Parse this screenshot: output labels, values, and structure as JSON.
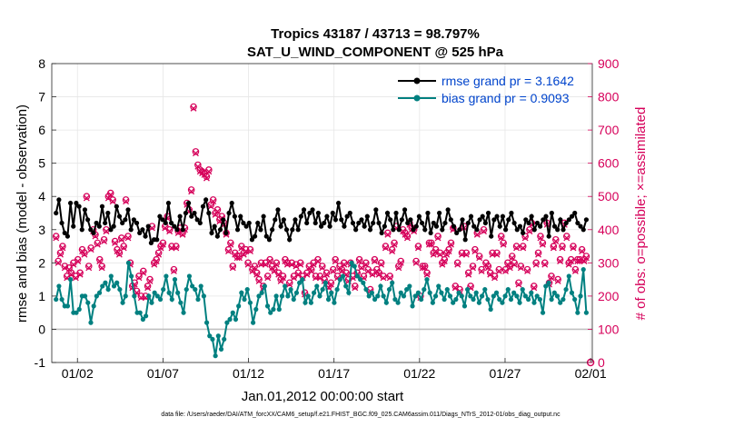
{
  "chart_data": {
    "type": "line",
    "title": "Tropics 43187 / 43713 = 98.797%",
    "subtitle": "SAT_U_WIND_COMPONENT @ 525 hPa",
    "xlabel": "Jan.01,2012 00:00:00 start",
    "ylabel": "rmse and bias (model - observation)",
    "ylabel_right": "# of obs: o=possible; ×=assimilated",
    "footnote": "data file: /Users/raeder/DAI/ATM_forcXX/CAM6_setup/f.e21.FHIST_BGC.f09_025.CAM6assim.011/Diags_NTrS_2012-01/obs_diag_output.nc",
    "x_unit": "days since Jan.01,2012 00:00:00",
    "xlim": [
      0,
      31.6
    ],
    "ylim": [
      -1,
      8
    ],
    "ylim_right": [
      0,
      900
    ],
    "x_ticks": [
      {
        "label": "01/02",
        "x": 1.5
      },
      {
        "label": "01/07",
        "x": 6.5
      },
      {
        "label": "01/12",
        "x": 11.5
      },
      {
        "label": "01/17",
        "x": 16.5
      },
      {
        "label": "01/22",
        "x": 21.5
      },
      {
        "label": "01/27",
        "x": 26.5
      },
      {
        "label": "02/01",
        "x": 31.5
      }
    ],
    "y_ticks": [
      "-1",
      "0",
      "1",
      "2",
      "3",
      "4",
      "5",
      "6",
      "7",
      "8"
    ],
    "y_ticks_right": [
      "0",
      "100",
      "200",
      "300",
      "400",
      "500",
      "600",
      "700",
      "800",
      "900"
    ],
    "zero_line": 0,
    "colors": {
      "rmse": "#000000",
      "bias": "#008080",
      "obs": "#d6005a",
      "grid": "#e6e6e6",
      "zero": "#c0c0c0",
      "legend_text": "#0044cc"
    },
    "series": [
      {
        "name": "rmse",
        "legend": "rmse grand pr = 3.1642",
        "color": "#000000",
        "values": [
          3.5,
          3.9,
          3.2,
          2.9,
          2.8,
          3.8,
          3.1,
          3.8,
          3.7,
          3.0,
          3.6,
          3.3,
          3.0,
          2.9,
          3.2,
          3.1,
          3.7,
          3.2,
          3.5,
          3.0,
          3.1,
          3.7,
          3.4,
          3.2,
          3.3,
          3.6,
          3.0,
          3.3,
          3.2,
          2.9,
          3.0,
          2.8,
          3.1,
          2.6,
          2.7,
          2.7,
          3.4,
          3.3,
          3.2,
          3.8,
          3.2,
          3.1,
          3.0,
          3.4,
          3.0,
          3.5,
          3.8,
          3.4,
          3.5,
          3.3,
          3.2,
          3.7,
          3.9,
          3.5,
          2.9,
          3.1,
          2.8,
          3.0,
          3.3,
          2.9,
          3.5,
          3.8,
          3.4,
          3.0,
          3.4,
          3.2,
          3.1,
          3.2,
          2.7,
          2.8,
          3.2,
          3.0,
          3.4,
          2.8,
          2.7,
          3.0,
          3.3,
          3.6,
          3.1,
          3.3,
          3.0,
          2.7,
          3.0,
          3.3,
          3.0,
          3.4,
          3.6,
          3.2,
          3.5,
          3.6,
          3.2,
          3.5,
          3.1,
          3.2,
          3.4,
          3.1,
          3.5,
          3.3,
          3.8,
          3.3,
          3.1,
          3.4,
          3.5,
          3.2,
          3.0,
          3.2,
          3.3,
          3.1,
          3.4,
          3.0,
          3.2,
          3.6,
          3.2,
          2.9,
          3.1,
          3.5,
          3.3,
          3.0,
          3.5,
          3.0,
          3.3,
          3.6,
          3.2,
          3.3,
          3.0,
          3.1,
          3.4,
          3.2,
          3.0,
          3.5,
          2.9,
          3.2,
          3.1,
          3.5,
          3.0,
          3.2,
          3.6,
          3.3,
          3.1,
          2.9,
          3.0,
          3.3,
          2.7,
          3.2,
          3.4,
          3.1,
          3.0,
          3.3,
          3.4,
          3.2,
          3.5,
          2.8,
          3.3,
          3.4,
          3.1,
          3.4,
          3.0,
          3.3,
          3.5,
          3.2,
          3.0,
          3.1,
          2.9,
          3.3,
          3.2,
          3.4,
          3.0,
          3.2,
          3.1,
          3.3,
          3.4,
          2.8,
          3.5,
          3.1,
          3.0,
          3.3,
          3.0,
          3.2,
          3.3,
          3.4,
          3.5,
          3.2,
          3.1,
          3.0,
          3.3
        ]
      },
      {
        "name": "bias",
        "legend": "bias grand pr = 0.9093",
        "color": "#008080",
        "values": [
          0.9,
          1.3,
          0.9,
          0.7,
          0.7,
          1.5,
          0.5,
          0.5,
          0.6,
          1.0,
          1.0,
          0.8,
          0.2,
          0.7,
          1.0,
          1.1,
          1.3,
          1.4,
          1.2,
          1.6,
          1.3,
          1.4,
          1.2,
          0.8,
          1.0,
          2.0,
          1.6,
          1.0,
          0.5,
          0.5,
          0.3,
          0.4,
          1.0,
          0.8,
          1.1,
          1.0,
          0.9,
          1.2,
          1.6,
          1.1,
          0.9,
          1.5,
          1.1,
          0.8,
          0.5,
          1.2,
          1.6,
          1.3,
          1.2,
          0.9,
          1.3,
          1.0,
          0.2,
          -0.2,
          -0.3,
          -0.8,
          -0.2,
          -0.6,
          -0.3,
          0.2,
          0.3,
          0.5,
          0.3,
          0.7,
          1.1,
          0.9,
          1.2,
          0.8,
          0.2,
          0.6,
          1.0,
          1.1,
          1.3,
          0.7,
          0.5,
          0.6,
          1.0,
          0.6,
          1.0,
          1.3,
          1.0,
          1.2,
          0.9,
          1.1,
          1.4,
          1.5,
          0.8,
          1.0,
          0.8,
          1.1,
          1.3,
          1.0,
          1.2,
          1.4,
          0.9,
          1.1,
          0.8,
          1.2,
          1.5,
          1.6,
          1.3,
          1.1,
          2.0,
          1.9,
          1.6,
          1.5,
          1.4,
          1.2,
          1.0,
          1.1,
          0.9,
          1.0,
          1.3,
          1.0,
          0.8,
          1.2,
          1.4,
          0.9,
          0.8,
          1.1,
          1.0,
          1.2,
          1.3,
          0.7,
          1.0,
          1.1,
          0.9,
          1.2,
          1.5,
          1.1,
          0.8,
          1.0,
          1.3,
          1.1,
          0.9,
          1.2,
          1.0,
          0.8,
          0.9,
          1.1,
          1.0,
          0.7,
          1.2,
          1.0,
          0.9,
          1.1,
          0.8,
          1.0,
          1.2,
          0.9,
          0.6,
          1.0,
          1.1,
          0.9,
          0.8,
          1.0,
          1.2,
          0.9,
          1.1,
          1.0,
          0.8,
          1.2,
          1.0,
          0.9,
          1.1,
          0.8,
          1.0,
          0.9,
          0.5,
          1.3,
          1.4,
          0.9,
          1.1,
          1.0,
          0.8,
          0.9,
          1.2,
          1.6,
          1.1,
          0.9,
          0.5,
          1.0,
          1.8,
          0.5
        ]
      },
      {
        "name": "nobs_possible",
        "axis": "right",
        "marker": "o",
        "color": "#d6005a",
        "values": [
          380,
          305,
          330,
          350,
          290,
          260,
          285,
          270,
          300,
          260,
          310,
          270,
          340,
          330,
          500,
          290,
          345,
          400,
          385,
          360,
          310,
          290,
          370,
          400,
          500,
          510,
          490,
          365,
          340,
          330,
          375,
          350,
          490,
          380,
          300,
          230,
          240,
          215,
          260,
          200,
          275,
          200,
          230,
          250,
          410,
          300,
          310,
          330,
          350,
          360,
          410,
          440,
          400,
          350,
          280,
          350,
          395,
          405,
          390,
          405,
          480,
          460,
          520,
          770,
          635,
          595,
          580,
          575,
          570,
          560,
          580,
          475,
          490,
          450,
          460,
          430,
          440,
          420,
          390,
          340,
          360,
          290,
          330,
          320,
          320,
          350,
          330,
          340,
          300,
          340,
          280,
          290,
          270,
          250,
          300,
          230,
          300,
          260,
          310,
          290,
          280,
          300,
          270,
          250,
          260,
          310,
          300,
          240,
          300,
          260,
          295,
          270,
          300,
          260,
          210,
          270,
          290,
          280,
          300,
          260,
          310,
          260,
          290,
          250,
          270,
          230,
          240,
          280,
          310,
          260,
          290,
          280,
          300,
          270,
          250,
          300,
          260,
          230,
          270,
          310,
          290,
          260,
          300,
          280,
          220,
          270,
          310,
          280,
          270,
          300,
          260,
          350,
          390,
          260,
          340,
          360,
          410,
          290,
          305,
          400,
          390,
          380,
          420,
          405,
          400,
          305,
          350,
          200,
          290,
          290,
          270,
          360,
          360,
          330,
          340,
          380,
          330,
          300,
          310,
          330,
          340,
          360,
          405,
          230,
          300,
          220,
          330,
          410,
          330,
          270,
          230,
          290,
          340,
          390,
          320,
          280,
          400,
          300,
          290,
          270,
          330,
          260,
          330,
          280,
          380,
          360,
          280,
          300,
          290,
          320,
          300,
          350,
          240,
          290,
          350,
          380,
          280,
          400,
          420,
          230,
          300,
          330,
          380,
          360,
          300,
          420,
          240,
          260,
          350,
          370,
          250,
          310,
          350,
          420,
          380,
          300,
          310,
          350,
          280,
          310,
          310,
          340,
          310,
          320
        ]
      },
      {
        "name": "nobs_assimilated",
        "axis": "right",
        "marker": "x",
        "color": "#d6005a",
        "values": [
          375,
          300,
          325,
          345,
          285,
          255,
          280,
          265,
          295,
          255,
          305,
          265,
          335,
          325,
          495,
          285,
          340,
          395,
          380,
          355,
          305,
          285,
          365,
          395,
          495,
          505,
          485,
          360,
          335,
          325,
          370,
          345,
          485,
          375,
          295,
          225,
          235,
          210,
          255,
          195,
          270,
          195,
          225,
          245,
          405,
          295,
          305,
          325,
          345,
          355,
          405,
          435,
          395,
          345,
          275,
          345,
          390,
          400,
          385,
          400,
          475,
          455,
          515,
          765,
          630,
          590,
          575,
          570,
          565,
          555,
          575,
          470,
          485,
          445,
          455,
          425,
          435,
          415,
          385,
          335,
          355,
          285,
          325,
          315,
          315,
          345,
          325,
          335,
          295,
          335,
          275,
          285,
          265,
          245,
          295,
          225,
          295,
          255,
          305,
          285,
          275,
          295,
          265,
          245,
          255,
          305,
          295,
          235,
          295,
          255,
          290,
          265,
          295,
          255,
          205,
          265,
          285,
          275,
          295,
          255,
          305,
          255,
          285,
          245,
          265,
          225,
          235,
          275,
          305,
          255,
          285,
          275,
          295,
          265,
          245,
          295,
          255,
          225,
          265,
          305,
          285,
          255,
          295,
          275,
          215,
          265,
          305,
          275,
          265,
          295,
          255,
          345,
          385,
          255,
          335,
          355,
          405,
          285,
          300,
          395,
          385,
          375,
          415,
          400,
          395,
          300,
          345,
          195,
          285,
          285,
          265,
          355,
          355,
          325,
          335,
          375,
          325,
          295,
          305,
          325,
          335,
          355,
          400,
          225,
          295,
          215,
          325,
          405,
          325,
          265,
          225,
          285,
          335,
          385,
          315,
          275,
          395,
          295,
          285,
          265,
          325,
          255,
          325,
          275,
          375,
          355,
          275,
          295,
          285,
          315,
          295,
          345,
          235,
          285,
          345,
          375,
          275,
          395,
          415,
          225,
          295,
          325,
          375,
          355,
          295,
          415,
          235,
          255,
          345,
          365,
          245,
          305,
          345,
          415,
          375,
          295,
          305,
          345,
          275,
          305,
          305,
          335,
          305,
          315
        ]
      }
    ],
    "tail_marker": {
      "x": 31.5,
      "value": 0,
      "axis": "right",
      "marker": "o"
    }
  }
}
